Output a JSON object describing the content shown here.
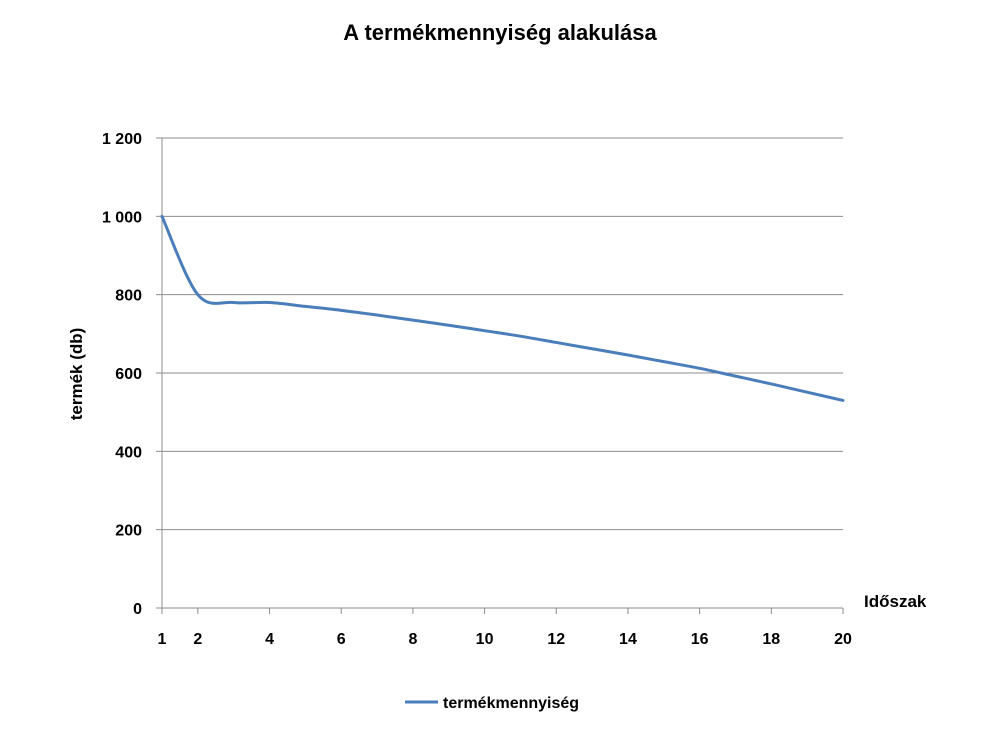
{
  "chart_data": {
    "type": "line",
    "title": "A termékmennyiség alakulása",
    "xlabel": "Időszak",
    "ylabel": "termék (db)",
    "xlim": [
      1,
      20
    ],
    "ylim": [
      0,
      1200
    ],
    "x_ticks": [
      "1",
      "2",
      "4",
      "6",
      "8",
      "10",
      "12",
      "14",
      "16",
      "18",
      "20"
    ],
    "y_ticks": [
      "0",
      "200",
      "400",
      "600",
      "800",
      "1 000",
      "1 200"
    ],
    "grid": "horizontal",
    "legend_position": "bottom",
    "series": [
      {
        "name": "termékmennyiség",
        "color": "#4a7ebb",
        "x": [
          1,
          2,
          3,
          4,
          5,
          6,
          7,
          8,
          9,
          10,
          11,
          12,
          13,
          14,
          15,
          16,
          17,
          18,
          19,
          20
        ],
        "values": [
          1000,
          800,
          780,
          780,
          770,
          760,
          748,
          735,
          722,
          708,
          694,
          678,
          662,
          646,
          629,
          612,
          592,
          572,
          551,
          530
        ]
      }
    ]
  }
}
